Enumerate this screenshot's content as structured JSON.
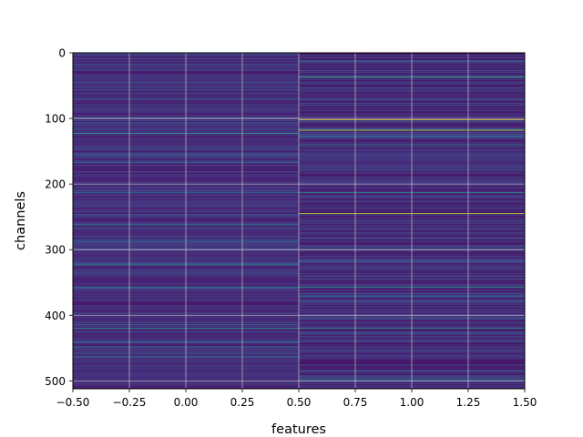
{
  "chart_data": {
    "type": "heatmap",
    "title": "",
    "xlabel": "features",
    "ylabel": "channels",
    "xlim": [
      -0.5,
      1.5
    ],
    "ylim": [
      512,
      0
    ],
    "y_inverted": true,
    "colormap": "viridis",
    "grid": true,
    "n_channels": 512,
    "columns": [
      0,
      1
    ],
    "x_ticks": [
      -0.5,
      -0.25,
      0.0,
      0.25,
      0.5,
      0.75,
      1.0,
      1.25,
      1.5
    ],
    "x_tick_labels": [
      "−0.50",
      "−0.25",
      "0.00",
      "0.25",
      "0.50",
      "0.75",
      "1.00",
      "1.25",
      "1.50"
    ],
    "y_ticks": [
      0,
      100,
      200,
      300,
      400,
      500
    ],
    "y_tick_labels": [
      "0",
      "100",
      "200",
      "300",
      "400",
      "500"
    ],
    "bright_rows": [
      {
        "column": 0,
        "channel": 123,
        "value": 0.55
      },
      {
        "column": 0,
        "channel": 262,
        "value": 0.42
      },
      {
        "column": 0,
        "channel": 322,
        "value": 0.5
      },
      {
        "column": 0,
        "channel": 357,
        "value": 0.42
      },
      {
        "column": 0,
        "channel": 420,
        "value": 0.55
      },
      {
        "column": 0,
        "channel": 463,
        "value": 0.42
      },
      {
        "column": 1,
        "channel": 37,
        "value": 0.65
      },
      {
        "column": 1,
        "channel": 102,
        "value": 0.95
      },
      {
        "column": 1,
        "channel": 118,
        "value": 0.9
      },
      {
        "column": 1,
        "channel": 140,
        "value": 0.5
      },
      {
        "column": 1,
        "channel": 213,
        "value": 0.5
      },
      {
        "column": 1,
        "channel": 245,
        "value": 0.92
      },
      {
        "column": 1,
        "channel": 300,
        "value": 0.45
      },
      {
        "column": 1,
        "channel": 357,
        "value": 0.6
      },
      {
        "column": 1,
        "channel": 420,
        "value": 0.55
      },
      {
        "column": 1,
        "channel": 498,
        "value": 0.5
      }
    ]
  },
  "colors": {
    "viridis_stops": [
      "#440154",
      "#482475",
      "#414487",
      "#355f8d",
      "#2a788e",
      "#21918c",
      "#22a884",
      "#44bf70",
      "#7ad151",
      "#bddf26",
      "#fde725"
    ],
    "grid": "#d9d9d9",
    "axis": "#000000"
  }
}
